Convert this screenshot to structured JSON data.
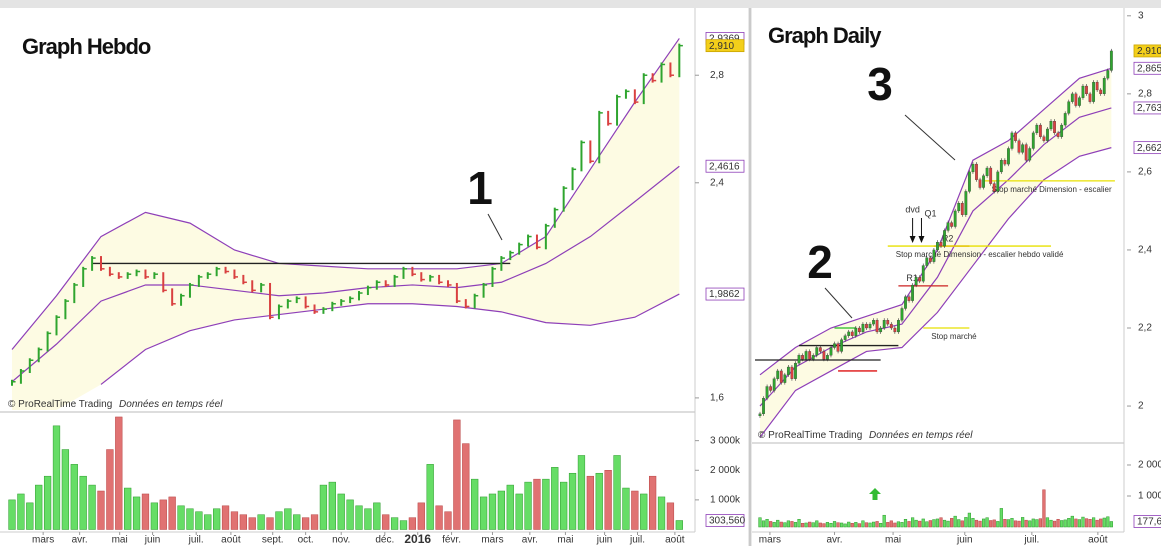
{
  "chart_data": [
    {
      "type": "ohlc",
      "title": "Graph Hebdo",
      "close": [
        1.66,
        1.7,
        1.74,
        1.78,
        1.84,
        1.9,
        1.96,
        2.02,
        2.08,
        2.12,
        2.08,
        2.06,
        2.05,
        2.06,
        2.07,
        2.05,
        2.06,
        2.0,
        1.95,
        1.98,
        2.02,
        2.05,
        2.06,
        2.08,
        2.07,
        2.05,
        2.03,
        2.0,
        2.02,
        1.9,
        1.94,
        1.96,
        1.97,
        1.94,
        1.92,
        1.93,
        1.95,
        1.96,
        1.97,
        1.99,
        2.01,
        2.03,
        2.02,
        2.05,
        2.08,
        2.06,
        2.04,
        2.05,
        2.03,
        2.02,
        1.96,
        1.94,
        1.98,
        2.02,
        2.08,
        2.12,
        2.14,
        2.17,
        2.2,
        2.16,
        2.24,
        2.3,
        2.38,
        2.45,
        2.55,
        2.48,
        2.66,
        2.62,
        2.72,
        2.74,
        2.7,
        2.8,
        2.78,
        2.84,
        2.8,
        2.91
      ],
      "up_color": "#2fa52f",
      "down_color": "#d94040",
      "xlim": [
        -1.35,
        76.2
      ],
      "xticks": [
        {
          "value": 3.5,
          "label": "mars"
        },
        {
          "value": 7.6,
          "label": "avr."
        },
        {
          "value": 12.1,
          "label": "mai"
        },
        {
          "value": 15.8,
          "label": "juin"
        },
        {
          "value": 20.7,
          "label": "juil."
        },
        {
          "value": 24.6,
          "label": "août"
        },
        {
          "value": 29.3,
          "label": "sept."
        },
        {
          "value": 33,
          "label": "oct."
        },
        {
          "value": 37,
          "label": "nov."
        },
        {
          "value": 41.9,
          "label": "déc."
        },
        {
          "value": 45.6,
          "label": "2016",
          "bold": true
        },
        {
          "value": 49.4,
          "label": "févr."
        },
        {
          "value": 54,
          "label": "mars"
        },
        {
          "value": 58.2,
          "label": "avr."
        },
        {
          "value": 62.2,
          "label": "mai"
        },
        {
          "value": 66.6,
          "label": "juin"
        },
        {
          "value": 70.3,
          "label": "juil."
        },
        {
          "value": 74.5,
          "label": "août"
        }
      ],
      "ylim": [
        1.555,
        3.05
      ],
      "yticks": [
        {
          "value": 1.6,
          "label": "1,6"
        },
        {
          "value": 2.4,
          "label": "2,4"
        },
        {
          "value": 2.8,
          "label": "2,8"
        }
      ],
      "bands": {
        "color": "#8e3fb8",
        "fill": "#fdfbe3",
        "x": [
          0,
          5,
          10,
          15,
          20,
          25,
          30,
          35,
          40,
          45,
          50,
          55,
          60,
          65,
          70,
          75
        ],
        "upper": [
          1.78,
          1.98,
          2.2,
          2.29,
          2.25,
          2.15,
          2.1,
          2.09,
          2.08,
          2.08,
          2.08,
          2.1,
          2.2,
          2.45,
          2.7,
          2.9369
        ],
        "middle": [
          1.66,
          1.8,
          1.96,
          2.02,
          2.02,
          2.0,
          1.98,
          1.99,
          2.01,
          2.02,
          2.01,
          2.03,
          2.1,
          2.2,
          2.33,
          2.4616
        ],
        "lower": [
          null,
          null,
          1.65,
          1.78,
          1.85,
          1.89,
          1.91,
          1.93,
          1.95,
          1.95,
          1.94,
          1.92,
          1.88,
          1.87,
          1.9,
          1.9862
        ]
      },
      "levels": [
        {
          "value": 2.1,
          "from": 9,
          "to": 56,
          "color": "#222222"
        }
      ],
      "price_labels": [
        {
          "value": 2.9369,
          "label": "2,9369",
          "style": "band"
        },
        {
          "value": 2.91,
          "label": "2,910",
          "style": "last"
        },
        {
          "value": 2.4616,
          "label": "2,4616",
          "style": "band"
        },
        {
          "value": 1.9862,
          "label": "1,9862",
          "style": "band"
        }
      ],
      "annotations": [
        "1"
      ],
      "source": "© ProRealTime Trading",
      "source_note": "Données en temps réel",
      "volume": {
        "values": [
          1000,
          1200,
          900,
          1500,
          1800,
          3500,
          2700,
          2200,
          1800,
          1500,
          1300,
          2700,
          3800,
          1400,
          1100,
          1200,
          900,
          1000,
          1100,
          800,
          700,
          600,
          500,
          700,
          800,
          600,
          500,
          400,
          500,
          400,
          600,
          700,
          500,
          400,
          500,
          1500,
          1600,
          1200,
          1000,
          800,
          700,
          900,
          500,
          400,
          300,
          400,
          900,
          2200,
          800,
          600,
          3700,
          2900,
          1700,
          1100,
          1200,
          1300,
          1500,
          1200,
          1600,
          1700,
          1700,
          2100,
          1600,
          1900,
          2500,
          1800,
          1900,
          2000,
          2500,
          1400,
          1300,
          1200,
          1800,
          1100,
          900,
          303.56
        ],
        "ylim": [
          0,
          3900
        ],
        "yticks": [
          {
            "value": 1000,
            "label": "1 000k"
          },
          {
            "value": 2000,
            "label": "2 000k"
          },
          {
            "value": 3000,
            "label": "3 000k"
          }
        ],
        "price_labels": [
          {
            "value": 303.56,
            "label": "303,560",
            "style": "band"
          }
        ]
      }
    },
    {
      "type": "candlestick",
      "title": "Graph Daily",
      "close": [
        1.98,
        2.02,
        2.05,
        2.04,
        2.07,
        2.09,
        2.06,
        2.08,
        2.1,
        2.07,
        2.11,
        2.13,
        2.12,
        2.14,
        2.12,
        2.13,
        2.15,
        2.14,
        2.12,
        2.13,
        2.15,
        2.16,
        2.14,
        2.17,
        2.18,
        2.19,
        2.18,
        2.2,
        2.19,
        2.21,
        2.2,
        2.21,
        2.22,
        2.19,
        2.2,
        2.22,
        2.21,
        2.2,
        2.19,
        2.22,
        2.25,
        2.28,
        2.27,
        2.31,
        2.33,
        2.32,
        2.36,
        2.38,
        2.37,
        2.4,
        2.42,
        2.41,
        2.45,
        2.47,
        2.46,
        2.5,
        2.52,
        2.49,
        2.55,
        2.6,
        2.62,
        2.58,
        2.56,
        2.59,
        2.61,
        2.57,
        2.55,
        2.6,
        2.63,
        2.62,
        2.66,
        2.7,
        2.68,
        2.65,
        2.67,
        2.63,
        2.66,
        2.7,
        2.72,
        2.69,
        2.68,
        2.71,
        2.73,
        2.7,
        2.69,
        2.72,
        2.75,
        2.78,
        2.8,
        2.77,
        2.79,
        2.82,
        2.8,
        2.78,
        2.83,
        2.81,
        2.8,
        2.84,
        2.86,
        2.91
      ],
      "up_color": "#2fa52f",
      "down_color": "#d94040",
      "xlim": [
        -2.25,
        102
      ],
      "xticks": [
        {
          "value": 2.8,
          "label": "mars"
        },
        {
          "value": 21,
          "label": "avr."
        },
        {
          "value": 37.5,
          "label": "mai"
        },
        {
          "value": 57.7,
          "label": "juin"
        },
        {
          "value": 76.6,
          "label": "juil."
        },
        {
          "value": 95.2,
          "label": "août"
        }
      ],
      "ylim": [
        1.913,
        3.02
      ],
      "yticks": [
        2,
        {
          "value": 2.2,
          "label": "2,2"
        },
        {
          "value": 2.4,
          "label": "2,4"
        },
        {
          "value": 2.6,
          "label": "2,6"
        },
        {
          "value": 2.8,
          "label": "2,8"
        },
        3
      ],
      "bands": {
        "color": "#8e3fb8",
        "fill": "#fdfbe3",
        "x": [
          0,
          10,
          20,
          30,
          40,
          50,
          60,
          70,
          80,
          90,
          99
        ],
        "upper": [
          2.08,
          2.15,
          2.2,
          2.23,
          2.26,
          2.4,
          2.63,
          2.68,
          2.76,
          2.84,
          2.8655
        ],
        "middle": [
          2.0,
          2.1,
          2.15,
          2.19,
          2.21,
          2.33,
          2.5,
          2.58,
          2.67,
          2.74,
          2.7639
        ],
        "lower": [
          1.92,
          2.04,
          2.09,
          2.14,
          2.15,
          2.24,
          2.36,
          2.48,
          2.58,
          2.64,
          2.6622
        ]
      },
      "levels": [
        {
          "value": 2.118,
          "from": -1.4,
          "to": 34,
          "color": "#222222"
        },
        {
          "value": 2.155,
          "from": 11,
          "to": 39,
          "color": "#222222"
        },
        {
          "value": 2.09,
          "from": 22,
          "to": 33,
          "color": "#dd1111"
        },
        {
          "value": 2.2,
          "from": 21,
          "to": 27,
          "color": "#22bb22"
        },
        {
          "value": 2.308,
          "from": 39,
          "to": 53,
          "color": "#cc2222",
          "label": "R1",
          "label_side": "above"
        },
        {
          "value": 2.41,
          "from": 49,
          "to": 59,
          "color": "#cc2222",
          "label": "R2",
          "label_side": "above"
        },
        {
          "value": 2.2,
          "from": 46,
          "to": 59,
          "color": "#e8e000",
          "label": "Stop marché",
          "label_side": "below"
        },
        {
          "value": 2.41,
          "from": 36,
          "to": 82,
          "color": "#e8e000",
          "label": "Stop marché Dimension - escalier hebdo validé",
          "label_side": "below"
        },
        {
          "value": 2.577,
          "from": 63,
          "to": 100,
          "color": "#e8e000",
          "label": "Stop marché Dimension - escalier",
          "label_side": "below"
        }
      ],
      "events": [
        {
          "label": "dvd",
          "at": 43
        },
        {
          "label": "Q1",
          "at": 45.5
        }
      ],
      "price_labels": [
        {
          "value": 2.91,
          "label": "2,910",
          "style": "last"
        },
        {
          "value": 2.8655,
          "label": "2,8655",
          "style": "band"
        },
        {
          "value": 2.7639,
          "label": "2,7639",
          "style": "band"
        },
        {
          "value": 2.6622,
          "label": "2,6622",
          "style": "band"
        }
      ],
      "annotations": [
        "2",
        "3"
      ],
      "source": "© ProRealTime Trading",
      "source_note": "Données en temps réel",
      "volume": {
        "values": [
          300,
          200,
          250,
          180,
          150,
          220,
          160,
          140,
          200,
          180,
          150,
          250,
          120,
          130,
          160,
          140,
          200,
          130,
          110,
          150,
          120,
          180,
          140,
          130,
          100,
          160,
          120,
          150,
          110,
          200,
          140,
          130,
          160,
          180,
          120,
          380,
          150,
          200,
          130,
          170,
          150,
          250,
          180,
          300,
          220,
          190,
          260,
          170,
          210,
          240,
          260,
          300,
          220,
          190,
          280,
          350,
          240,
          200,
          310,
          450,
          280,
          220,
          190,
          260,
          300,
          210,
          230,
          180,
          600,
          250,
          240,
          280,
          200,
          190,
          310,
          220,
          200,
          260,
          240,
          270,
          1200,
          300,
          220,
          190,
          250,
          210,
          230,
          280,
          350,
          260,
          240,
          320,
          270,
          250,
          300,
          220,
          260,
          290,
          330,
          177.66
        ],
        "ylim": [
          0,
          2580
        ],
        "yticks": [
          {
            "value": 1000,
            "label": "1 000k"
          },
          {
            "value": 2000,
            "label": "2 000k"
          }
        ],
        "price_labels": [
          {
            "value": 177.66,
            "label": "177,66",
            "style": "band"
          }
        ]
      }
    }
  ]
}
